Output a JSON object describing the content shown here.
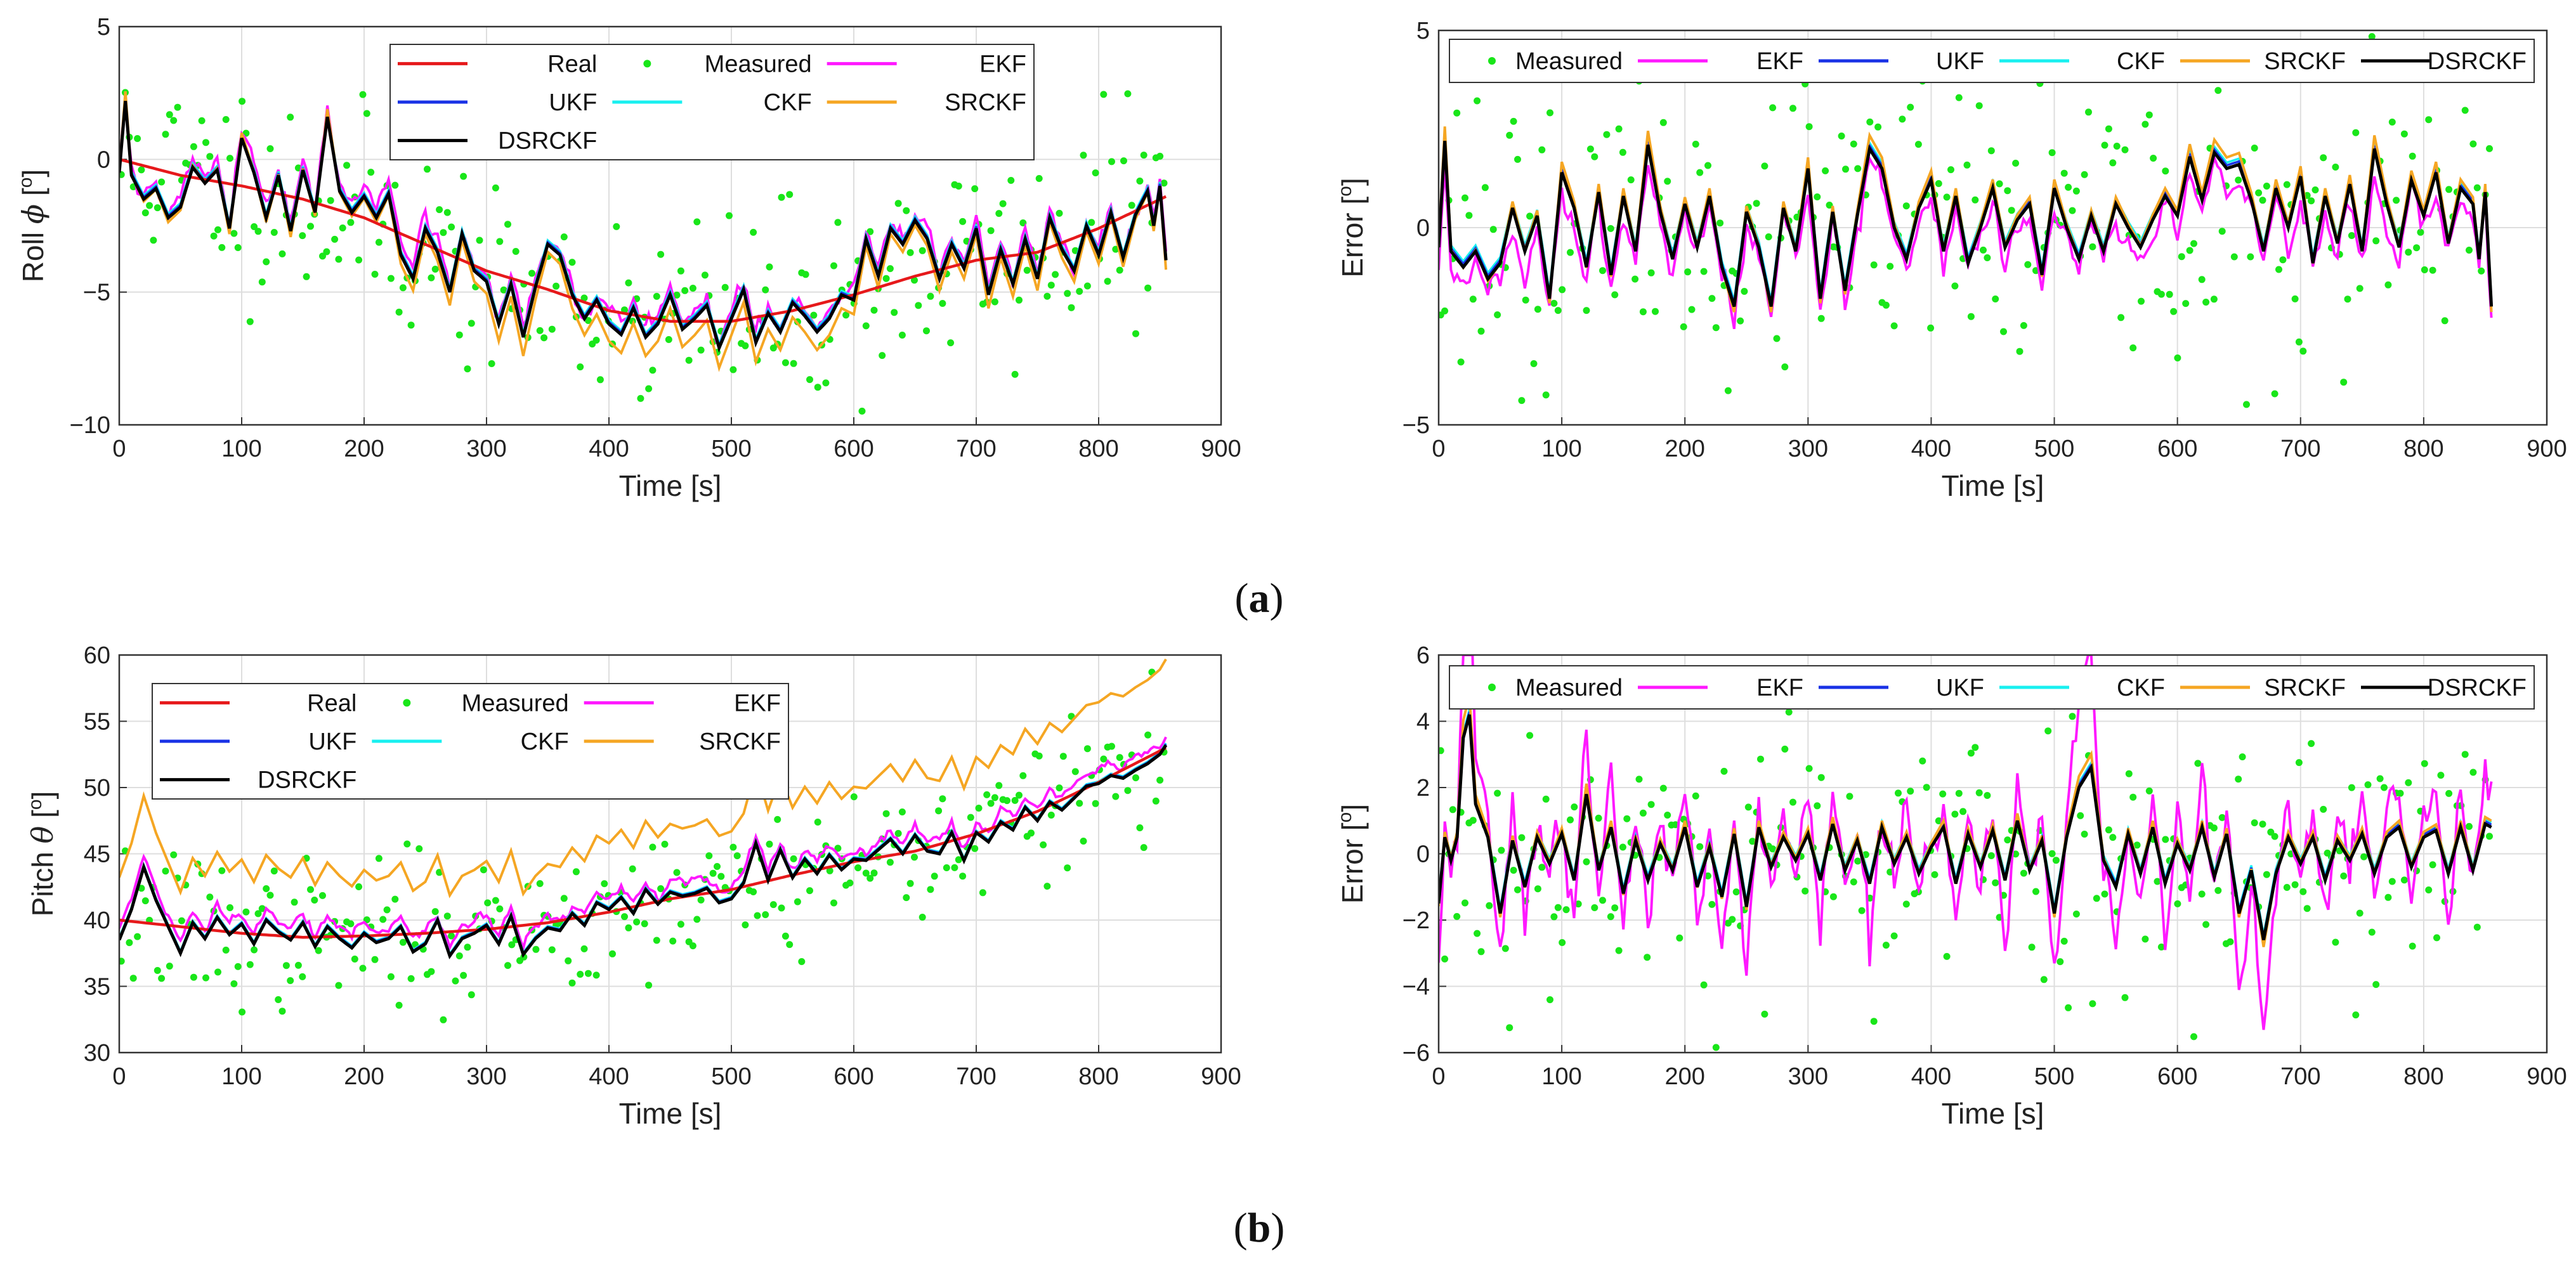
{
  "colors": {
    "Real": "#e6191b",
    "Measured": "#19e619",
    "EKF": "#ff19ff",
    "UKF": "#1932e6",
    "CKF": "#19f0f0",
    "SRCKF": "#f5a623",
    "DSRCKF": "#000000"
  },
  "captions": {
    "a": {
      "open": "(",
      "letter": "a",
      "close": ")"
    },
    "b": {
      "open": "(",
      "letter": "b",
      "close": ")"
    }
  },
  "chart_data": [
    {
      "id": "roll",
      "type": "line",
      "xlabel": "Time [s]",
      "ylabel_prefix": "Roll ",
      "ylabel_symbol": "ϕ",
      "ylabel_unit_open": " [",
      "ylabel_unit_sup": "o",
      "ylabel_unit_close": "]",
      "xlim": [
        0,
        900
      ],
      "ylim": [
        -10,
        5
      ],
      "xticks": [
        0,
        100,
        200,
        300,
        400,
        500,
        600,
        700,
        800,
        900
      ],
      "yticks": [
        -10,
        -5,
        0,
        5
      ],
      "grid": true,
      "legend_position": "top-center",
      "legend_entries": [
        "Real",
        "Measured",
        "EKF",
        "UKF",
        "CKF",
        "SRCKF",
        "DSRCKF"
      ],
      "legend_columns": 3,
      "real": {
        "x": [
          0,
          50,
          100,
          150,
          200,
          250,
          300,
          350,
          400,
          450,
          500,
          550,
          600,
          650,
          700,
          750,
          800,
          855
        ],
        "y": [
          0,
          -0.6,
          -1.0,
          -1.5,
          -2.2,
          -3.2,
          -4.2,
          -4.9,
          -5.7,
          -6.1,
          -6.1,
          -5.7,
          -5.1,
          -4.4,
          -3.8,
          -3.5,
          -2.6,
          -1.4
        ]
      },
      "estimate": {
        "x": [
          0,
          5,
          10,
          20,
          30,
          40,
          50,
          60,
          70,
          80,
          90,
          100,
          110,
          120,
          130,
          140,
          150,
          160,
          170,
          180,
          190,
          200,
          210,
          220,
          230,
          240,
          250,
          260,
          270,
          280,
          290,
          300,
          310,
          320,
          330,
          340,
          350,
          360,
          370,
          380,
          390,
          400,
          410,
          420,
          430,
          440,
          450,
          460,
          470,
          480,
          490,
          500,
          510,
          520,
          530,
          540,
          550,
          560,
          570,
          580,
          590,
          600,
          610,
          620,
          630,
          640,
          650,
          660,
          670,
          680,
          690,
          700,
          710,
          720,
          730,
          740,
          750,
          760,
          770,
          780,
          790,
          800,
          810,
          820,
          830,
          840,
          845,
          850,
          855
        ],
        "y": [
          -0.5,
          2.2,
          -0.6,
          -1.5,
          -1.1,
          -2.2,
          -1.8,
          -0.3,
          -0.9,
          -0.4,
          -2.6,
          0.8,
          -0.5,
          -2.2,
          -0.6,
          -2.7,
          -0.4,
          -2.0,
          1.6,
          -1.2,
          -2.0,
          -1.4,
          -2.2,
          -1.3,
          -3.6,
          -4.5,
          -2.6,
          -3.5,
          -5.0,
          -2.8,
          -4.2,
          -4.6,
          -6.2,
          -4.7,
          -6.7,
          -4.8,
          -3.2,
          -3.6,
          -5.1,
          -6.0,
          -5.3,
          -6.2,
          -6.6,
          -5.6,
          -6.7,
          -6.2,
          -5.1,
          -6.4,
          -6.0,
          -5.5,
          -7.1,
          -6.0,
          -4.9,
          -6.9,
          -5.8,
          -6.5,
          -5.4,
          -5.9,
          -6.5,
          -6.0,
          -5.1,
          -5.3,
          -3.0,
          -4.4,
          -2.6,
          -3.2,
          -2.3,
          -3.0,
          -4.5,
          -3.2,
          -4.1,
          -2.6,
          -5.1,
          -3.4,
          -4.7,
          -3.0,
          -4.5,
          -2.2,
          -3.4,
          -4.2,
          -2.5,
          -3.6,
          -2.0,
          -3.7,
          -2.1,
          -1.2,
          -2.5,
          -1.0,
          -3.8
        ]
      },
      "ekf_offset": 0.3,
      "measured_seed": 11,
      "measured_noise": 2.0,
      "measured_count": 260
    },
    {
      "id": "roll_error",
      "type": "line",
      "xlabel": "Time [s]",
      "ylabel_prefix": "Error",
      "ylabel_symbol": "",
      "ylabel_unit_open": " [",
      "ylabel_unit_sup": "o",
      "ylabel_unit_close": "]",
      "xlim": [
        0,
        900
      ],
      "ylim": [
        -5,
        5
      ],
      "xticks": [
        0,
        100,
        200,
        300,
        400,
        500,
        600,
        700,
        800,
        900
      ],
      "yticks": [
        -5,
        0,
        5
      ],
      "grid": true,
      "legend_position": "top",
      "legend_entries": [
        "Measured",
        "EKF",
        "UKF",
        "CKF",
        "SRCKF",
        "DSRCKF"
      ],
      "legend_columns": 6,
      "estimate": {
        "x": [
          0,
          5,
          10,
          20,
          30,
          40,
          50,
          60,
          70,
          80,
          90,
          100,
          110,
          120,
          130,
          140,
          150,
          160,
          170,
          180,
          190,
          200,
          210,
          220,
          230,
          240,
          250,
          260,
          270,
          280,
          290,
          300,
          310,
          320,
          330,
          340,
          350,
          360,
          370,
          380,
          390,
          400,
          410,
          420,
          430,
          440,
          450,
          460,
          470,
          480,
          490,
          500,
          510,
          520,
          530,
          540,
          550,
          560,
          570,
          580,
          590,
          600,
          610,
          620,
          630,
          640,
          650,
          660,
          670,
          680,
          690,
          700,
          710,
          720,
          730,
          740,
          750,
          760,
          770,
          780,
          790,
          800,
          810,
          820,
          830,
          840,
          845,
          850,
          855
        ],
        "y": [
          -0.5,
          2.2,
          -0.6,
          -1.0,
          -0.6,
          -1.3,
          -0.9,
          0.5,
          -0.6,
          0.3,
          -1.8,
          1.4,
          0.5,
          -1.0,
          0.9,
          -1.2,
          0.8,
          -0.6,
          2.1,
          0.4,
          -0.8,
          0.6,
          -0.5,
          0.8,
          -1.0,
          -2.0,
          0.4,
          -0.5,
          -2.0,
          0.5,
          -0.6,
          1.5,
          -1.8,
          0.4,
          -1.6,
          0.3,
          2.0,
          1.5,
          0.0,
          -0.8,
          0.5,
          1.2,
          -0.6,
          0.8,
          -0.9,
          0.0,
          1.0,
          -0.5,
          0.2,
          0.6,
          -1.2,
          1.0,
          0.0,
          -0.8,
          0.3,
          -0.6,
          0.6,
          0.0,
          -0.5,
          0.2,
          0.8,
          0.3,
          1.8,
          0.7,
          1.9,
          1.5,
          1.6,
          0.7,
          -0.6,
          1.0,
          0.0,
          1.3,
          -0.9,
          0.8,
          -0.4,
          1.1,
          -0.6,
          2.0,
          0.6,
          -0.5,
          1.2,
          0.3,
          1.4,
          -0.4,
          1.0,
          0.6,
          -0.8,
          0.9,
          -2.0
        ]
      },
      "ekf_offset": -0.3,
      "measured_seed": 23,
      "measured_noise": 2.0,
      "measured_count": 260
    },
    {
      "id": "pitch",
      "type": "line",
      "xlabel": "Time [s]",
      "ylabel_prefix": "Pitch ",
      "ylabel_symbol": "θ",
      "ylabel_unit_open": " [",
      "ylabel_unit_sup": "o",
      "ylabel_unit_close": "]",
      "xlim": [
        0,
        900
      ],
      "ylim": [
        30,
        60
      ],
      "xticks": [
        0,
        100,
        200,
        300,
        400,
        500,
        600,
        700,
        800,
        900
      ],
      "yticks": [
        30,
        35,
        40,
        45,
        50,
        55,
        60
      ],
      "grid": true,
      "legend_position": "top-left",
      "legend_entries": [
        "Real",
        "Measured",
        "EKF",
        "UKF",
        "CKF",
        "SRCKF",
        "DSRCKF"
      ],
      "legend_columns": 3,
      "real": {
        "x": [
          0,
          50,
          100,
          150,
          200,
          250,
          300,
          350,
          400,
          450,
          500,
          550,
          600,
          650,
          700,
          750,
          800,
          855
        ],
        "y": [
          40.0,
          39.5,
          39.0,
          38.7,
          38.8,
          39.0,
          39.3,
          39.8,
          40.6,
          41.6,
          42.3,
          43.4,
          44.4,
          45.2,
          46.5,
          48.2,
          50.4,
          53.0
        ]
      },
      "estimate": {
        "x": [
          0,
          10,
          20,
          30,
          40,
          50,
          60,
          70,
          80,
          90,
          100,
          110,
          120,
          130,
          140,
          150,
          160,
          170,
          180,
          190,
          200,
          210,
          220,
          230,
          240,
          250,
          260,
          270,
          280,
          290,
          300,
          310,
          320,
          330,
          340,
          350,
          360,
          370,
          380,
          390,
          400,
          410,
          420,
          430,
          440,
          450,
          460,
          470,
          480,
          490,
          500,
          510,
          520,
          530,
          540,
          550,
          560,
          570,
          580,
          590,
          600,
          610,
          620,
          630,
          640,
          650,
          660,
          670,
          680,
          690,
          700,
          710,
          720,
          730,
          740,
          750,
          760,
          770,
          780,
          790,
          800,
          810,
          820,
          830,
          840,
          850,
          855
        ],
        "y": [
          38.5,
          40.8,
          44.0,
          41.5,
          39.5,
          37.5,
          39.8,
          38.6,
          40.2,
          38.9,
          39.7,
          38.2,
          40.0,
          39.1,
          38.5,
          39.8,
          38.0,
          39.5,
          38.6,
          37.9,
          39.0,
          38.3,
          38.6,
          39.5,
          37.6,
          38.2,
          40.0,
          37.3,
          38.6,
          39.0,
          39.6,
          38.2,
          40.3,
          37.4,
          38.6,
          39.4,
          39.2,
          40.5,
          39.6,
          41.3,
          40.8,
          41.7,
          40.5,
          42.3,
          41.2,
          42.1,
          41.8,
          42.0,
          42.4,
          41.3,
          41.6,
          42.8,
          45.8,
          43.0,
          45.3,
          43.2,
          44.6,
          43.5,
          44.9,
          43.8,
          44.6,
          44.5,
          45.3,
          46.1,
          45.0,
          46.4,
          45.2,
          45.0,
          46.6,
          44.5,
          46.6,
          45.9,
          47.4,
          46.8,
          48.5,
          47.5,
          48.9,
          48.3,
          49.2,
          50.1,
          50.3,
          50.9,
          50.7,
          51.3,
          51.8,
          52.5,
          53.2
        ]
      },
      "ekf_offset": 0.8,
      "measured_seed": 37,
      "measured_noise": 2.8,
      "measured_count": 260
    },
    {
      "id": "pitch_error",
      "type": "line",
      "xlabel": "Time [s]",
      "ylabel_prefix": "Error",
      "ylabel_symbol": "",
      "ylabel_unit_open": " [",
      "ylabel_unit_sup": "o",
      "ylabel_unit_close": "]",
      "xlim": [
        0,
        900
      ],
      "ylim": [
        -6,
        6
      ],
      "xticks": [
        0,
        100,
        200,
        300,
        400,
        500,
        600,
        700,
        800,
        900
      ],
      "yticks": [
        -6,
        -4,
        -2,
        0,
        2,
        4,
        6
      ],
      "grid": true,
      "legend_position": "top",
      "legend_entries": [
        "Measured",
        "EKF",
        "UKF",
        "CKF",
        "SRCKF",
        "DSRCKF"
      ],
      "legend_columns": 6,
      "estimate": {
        "x": [
          0,
          5,
          10,
          15,
          20,
          25,
          30,
          40,
          50,
          60,
          70,
          80,
          90,
          100,
          110,
          120,
          130,
          140,
          150,
          160,
          170,
          180,
          190,
          200,
          210,
          220,
          230,
          240,
          250,
          260,
          270,
          280,
          290,
          300,
          310,
          320,
          330,
          340,
          350,
          360,
          370,
          380,
          390,
          400,
          410,
          420,
          430,
          440,
          450,
          460,
          470,
          480,
          490,
          500,
          510,
          520,
          530,
          540,
          550,
          560,
          570,
          580,
          590,
          600,
          610,
          620,
          630,
          640,
          650,
          660,
          670,
          680,
          690,
          700,
          710,
          720,
          730,
          740,
          750,
          760,
          770,
          780,
          790,
          800,
          810,
          820,
          830,
          840,
          850,
          855
        ],
        "y": [
          -1.5,
          0.5,
          -0.2,
          0.5,
          3.5,
          4.2,
          1.5,
          0.5,
          -1.8,
          0.4,
          -1.0,
          0.5,
          -0.3,
          0.6,
          -0.8,
          1.8,
          -0.5,
          0.8,
          -1.2,
          0.4,
          -0.8,
          0.3,
          -0.5,
          0.8,
          -1.0,
          0.2,
          -1.3,
          0.6,
          -1.6,
          0.8,
          -0.4,
          0.5,
          -0.2,
          0.6,
          -0.8,
          0.9,
          -0.5,
          0.4,
          -0.9,
          0.8,
          -0.3,
          0.5,
          -0.6,
          0.2,
          0.8,
          -0.9,
          0.6,
          -0.4,
          0.7,
          -0.8,
          1.0,
          -0.5,
          0.4,
          -1.8,
          0.5,
          2.0,
          2.6,
          -0.2,
          -1.0,
          0.6,
          -0.6,
          0.8,
          -0.9,
          0.3,
          -0.5,
          0.8,
          -0.7,
          0.6,
          -1.8,
          -0.5,
          -2.6,
          -0.6,
          0.5,
          -0.3,
          0.5,
          -0.8,
          0.4,
          -0.2,
          0.6,
          -0.6,
          0.5,
          0.8,
          -0.4,
          0.5,
          0.7,
          -0.6,
          0.8,
          -0.5,
          0.9,
          0.8
        ]
      },
      "ekf_offset": 0.0,
      "ekf_amp": 2.2,
      "measured_seed": 53,
      "measured_noise": 2.2,
      "measured_count": 260
    }
  ]
}
